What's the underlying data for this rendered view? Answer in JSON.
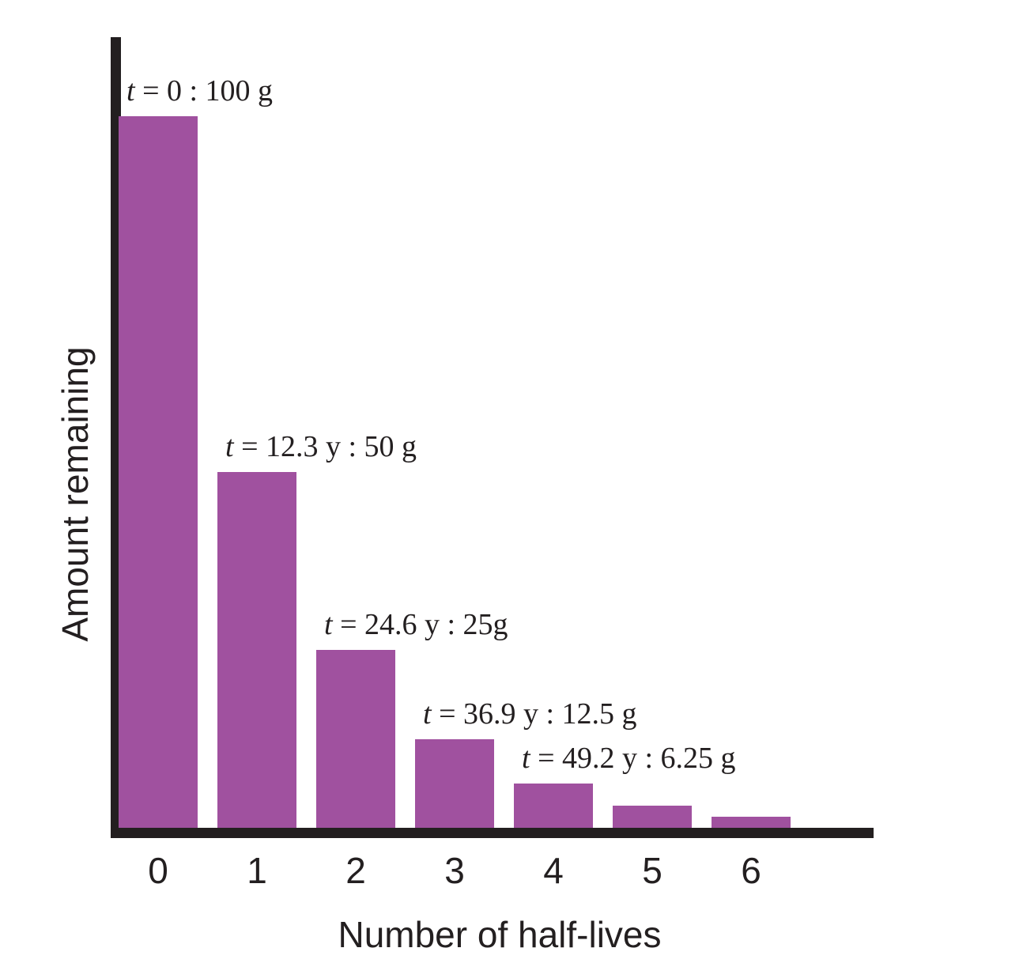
{
  "chart_data": {
    "type": "bar",
    "title": "",
    "xlabel": "Number of half-lives",
    "ylabel": "Amount remaining",
    "categories": [
      "0",
      "1",
      "2",
      "3",
      "4",
      "5",
      "6"
    ],
    "values": [
      100,
      50,
      25,
      12.5,
      6.25,
      3.125,
      1.5625
    ],
    "unit": "g",
    "ylim": [
      0,
      105
    ],
    "grid": false,
    "legend": "none",
    "bar_color": "#a0519f",
    "axis_color": "#231f20",
    "annotations": [
      {
        "bar": 0,
        "var": "t",
        "text": "= 0 : 100 g"
      },
      {
        "bar": 1,
        "var": "t",
        "text": "= 12.3 y : 50 g"
      },
      {
        "bar": 2,
        "var": "t",
        "text": "= 24.6 y : 25g"
      },
      {
        "bar": 3,
        "var": "t",
        "text": "= 36.9 y : 12.5 g"
      },
      {
        "bar": 4,
        "var": "t",
        "text": "= 49.2 y : 6.25 g"
      }
    ]
  }
}
